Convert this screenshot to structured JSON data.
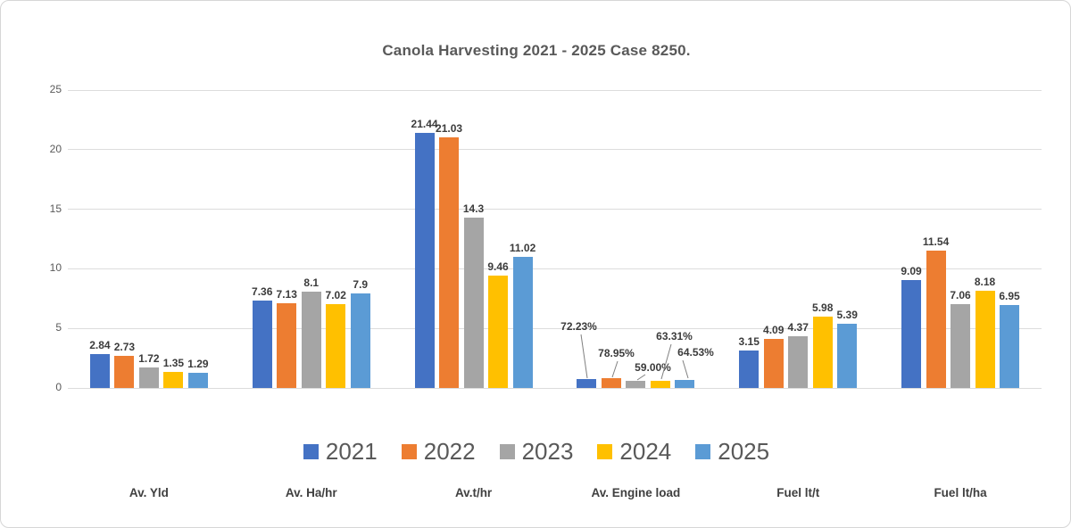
{
  "chart_data": {
    "type": "bar",
    "title": "Canola Harvesting 2021 - 2025 Case 8250.",
    "categories": [
      "Av. Yld",
      "Av. Ha/hr",
      "Av.t/hr",
      "Av. Engine load",
      "Fuel lt/t",
      "Fuel lt/ha"
    ],
    "series": [
      {
        "name": "2021",
        "color": "#4472C4",
        "values": [
          2.84,
          7.36,
          21.44,
          0.7223,
          3.15,
          9.09
        ],
        "labels": [
          "2.84",
          "7.36",
          "21.44",
          "72.23%",
          "3.15",
          "9.09"
        ]
      },
      {
        "name": "2022",
        "color": "#ED7D31",
        "values": [
          2.73,
          7.13,
          21.03,
          0.7895,
          4.09,
          11.54
        ],
        "labels": [
          "2.73",
          "7.13",
          "21.03",
          "78.95%",
          "4.09",
          "11.54"
        ]
      },
      {
        "name": "2023",
        "color": "#A5A5A5",
        "values": [
          1.72,
          8.1,
          14.3,
          0.59,
          4.37,
          7.06
        ],
        "labels": [
          "1.72",
          "8.1",
          "14.3",
          "59.00%",
          "4.37",
          "7.06"
        ]
      },
      {
        "name": "2024",
        "color": "#FFC000",
        "values": [
          1.35,
          7.02,
          9.46,
          0.6331,
          5.98,
          8.18
        ],
        "labels": [
          "1.35",
          "7.02",
          "9.46",
          "63.31%",
          "5.98",
          "8.18"
        ]
      },
      {
        "name": "2025",
        "color": "#5B9BD5",
        "values": [
          1.29,
          7.9,
          11.02,
          0.6453,
          5.39,
          6.95
        ],
        "labels": [
          "1.29",
          "7.9",
          "11.02",
          "64.53%",
          "5.39",
          "6.95"
        ]
      }
    ],
    "y_axis": {
      "ticks": [
        0,
        5,
        10,
        15,
        20,
        25
      ],
      "max": 25
    },
    "grid": true,
    "legend_position": "bottom",
    "callout_category": "Av. Engine load",
    "colors": {
      "gridline": "#dcdcdc",
      "title_text": "#595959",
      "axis_text": "#595959",
      "data_label_text": "#3b3b3b",
      "category_text": "#404040",
      "legend_text": "#595959",
      "leader_line": "#808080"
    }
  }
}
